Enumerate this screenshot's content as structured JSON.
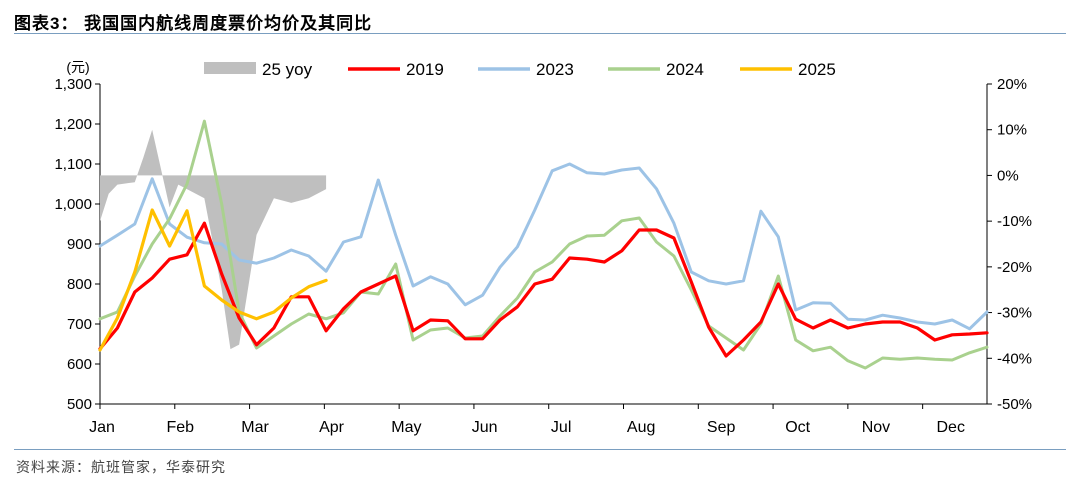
{
  "figure": {
    "title": "图表3：   我国国内航线周度票价均价及其同比",
    "source": "资料来源：航班管家，华泰研究"
  },
  "chart_data": {
    "type": "line",
    "y_left": {
      "unit_label": "(元)",
      "min": 500,
      "max": 1300,
      "ticks": [
        500,
        600,
        700,
        800,
        900,
        1000,
        1100,
        1200,
        1300
      ],
      "tick_labels": [
        "500",
        "600",
        "700",
        "800",
        "900",
        "1,000",
        "1,100",
        "1,200",
        "1,300"
      ]
    },
    "y_right": {
      "min": -50,
      "max": 20,
      "ticks": [
        -50,
        -40,
        -30,
        -20,
        -10,
        0,
        10,
        20
      ],
      "tick_labels": [
        "-50%",
        "-40%",
        "-30%",
        "-20%",
        "-10%",
        "0%",
        "10%",
        "20%"
      ]
    },
    "x": {
      "min": 1,
      "max": 52,
      "months": [
        "Jan",
        "Feb",
        "Mar",
        "Apr",
        "May",
        "Jun",
        "Jul",
        "Aug",
        "Sep",
        "Oct",
        "Nov",
        "Dec"
      ],
      "month_positions": [
        1,
        5.5,
        9.8,
        14.2,
        18.5,
        23,
        27.4,
        32,
        36.6,
        41,
        45.5,
        49.8
      ]
    },
    "legend": [
      "25 yoy",
      "2019",
      "2023",
      "2024",
      "2025"
    ],
    "colors": {
      "yoy": "#bfbfbf",
      "y2019": "#ff0000",
      "y2023": "#9dc3e6",
      "y2024": "#a9d18e",
      "y2025": "#ffc000"
    },
    "series": [
      {
        "name": "25 yoy",
        "axis": "right",
        "kind": "area",
        "x": [
          1,
          1.5,
          2,
          3,
          3.5,
          4,
          5,
          5.5,
          6,
          7,
          8,
          8.5,
          9,
          10,
          11,
          12,
          13,
          14
        ],
        "values": [
          -10,
          -4,
          -2,
          -1.5,
          4,
          10,
          -7,
          -2,
          -3,
          -5,
          -25,
          -38,
          -37,
          -13,
          -5,
          -6,
          -5,
          -3
        ]
      },
      {
        "name": "2019",
        "axis": "left",
        "x": [
          1,
          2,
          3,
          4,
          5,
          6,
          7,
          8,
          9,
          10,
          11,
          12,
          13,
          14,
          15,
          16,
          17,
          18,
          19,
          20,
          21,
          22,
          23,
          24,
          25,
          26,
          27,
          28,
          29,
          30,
          31,
          32,
          33,
          34,
          35,
          36,
          37,
          38,
          39,
          40,
          41,
          42,
          43,
          44,
          45,
          46,
          47,
          48,
          49,
          50,
          51,
          52
        ],
        "values": [
          638,
          690,
          780,
          815,
          862,
          873,
          952,
          825,
          715,
          648,
          690,
          768,
          768,
          683,
          738,
          780,
          800,
          820,
          683,
          710,
          708,
          663,
          663,
          710,
          743,
          800,
          812,
          865,
          862,
          855,
          883,
          935,
          935,
          915,
          805,
          692,
          620,
          660,
          705,
          800,
          712,
          690,
          710,
          690,
          700,
          705,
          705,
          690,
          660,
          673,
          675,
          678
        ]
      },
      {
        "name": "2023",
        "axis": "left",
        "x": [
          1,
          2,
          3,
          4,
          5,
          6,
          7,
          8,
          9,
          10,
          11,
          12,
          13,
          14,
          15,
          16,
          17,
          18,
          19,
          20,
          21,
          22,
          23,
          24,
          25,
          26,
          27,
          28,
          29,
          30,
          31,
          32,
          33,
          34,
          35,
          36,
          37,
          38,
          39,
          40,
          41,
          42,
          43,
          44,
          45,
          46,
          47,
          48,
          49,
          50,
          51,
          52
        ],
        "values": [
          895,
          922,
          950,
          1063,
          950,
          917,
          903,
          900,
          860,
          852,
          865,
          885,
          870,
          832,
          905,
          918,
          1060,
          922,
          795,
          818,
          800,
          748,
          772,
          842,
          893,
          985,
          1083,
          1100,
          1078,
          1075,
          1085,
          1090,
          1038,
          952,
          830,
          808,
          800,
          808,
          982,
          918,
          735,
          753,
          752,
          712,
          710,
          722,
          715,
          705,
          700,
          710,
          688,
          730
        ]
      },
      {
        "name": "2024",
        "axis": "left",
        "x": [
          1,
          2,
          3,
          4,
          5,
          6,
          7,
          8,
          9,
          10,
          11,
          12,
          13,
          14,
          15,
          16,
          17,
          18,
          19,
          20,
          21,
          22,
          23,
          24,
          25,
          26,
          27,
          28,
          29,
          30,
          31,
          32,
          33,
          34,
          35,
          36,
          37,
          38,
          39,
          40,
          41,
          42,
          43,
          44,
          45,
          46,
          47,
          48,
          49,
          50,
          51,
          52
        ],
        "values": [
          713,
          730,
          820,
          900,
          963,
          1050,
          1207,
          1000,
          730,
          640,
          670,
          700,
          725,
          713,
          728,
          780,
          775,
          850,
          660,
          685,
          690,
          665,
          670,
          720,
          765,
          830,
          855,
          900,
          920,
          922,
          958,
          965,
          905,
          870,
          785,
          695,
          665,
          635,
          700,
          820,
          660,
          633,
          642,
          608,
          590,
          615,
          612,
          615,
          612,
          610,
          628,
          642
        ]
      },
      {
        "name": "2025",
        "axis": "left",
        "x": [
          1,
          2,
          3,
          4,
          5,
          6,
          7,
          8,
          9,
          10,
          11,
          12,
          13,
          14
        ],
        "values": [
          635,
          715,
          830,
          985,
          895,
          983,
          795,
          760,
          730,
          713,
          730,
          765,
          793,
          809
        ]
      }
    ]
  }
}
